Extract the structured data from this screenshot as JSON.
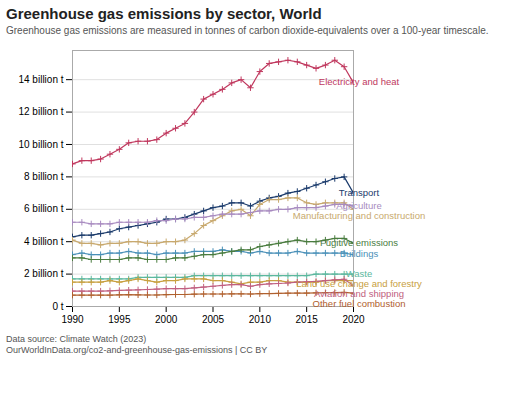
{
  "chart_data": {
    "type": "line",
    "title": "Greenhouse gas emissions by sector, World",
    "subtitle": "Greenhouse gas emissions are measured in tonnes of carbon dioxide-equivalents over a 100-year timescale.",
    "caption": "Data source: Climate Watch (2023)\nOurWorldInData.org/co2-and-greenhouse-gas-emissions | CC BY",
    "x": [
      1990,
      1991,
      1992,
      1993,
      1994,
      1995,
      1996,
      1997,
      1998,
      1999,
      2000,
      2001,
      2002,
      2003,
      2004,
      2005,
      2006,
      2007,
      2008,
      2009,
      2010,
      2011,
      2012,
      2013,
      2014,
      2015,
      2016,
      2017,
      2018,
      2019,
      2020
    ],
    "series": [
      {
        "name": "Electricity and heat",
        "color": "#c0385e",
        "values": [
          8.8,
          9.0,
          9.0,
          9.1,
          9.4,
          9.7,
          10.1,
          10.2,
          10.2,
          10.3,
          10.7,
          11.0,
          11.3,
          12.0,
          12.8,
          13.1,
          13.4,
          13.8,
          14.0,
          13.5,
          14.5,
          15.0,
          15.1,
          15.2,
          15.1,
          14.9,
          14.7,
          14.9,
          15.2,
          14.8,
          13.8
        ]
      },
      {
        "name": "Transport",
        "color": "#1a3a6b",
        "values": [
          4.3,
          4.4,
          4.4,
          4.5,
          4.6,
          4.8,
          4.9,
          5.0,
          5.1,
          5.2,
          5.4,
          5.4,
          5.5,
          5.7,
          5.9,
          6.1,
          6.2,
          6.4,
          6.4,
          6.2,
          6.5,
          6.7,
          6.8,
          7.0,
          7.1,
          7.3,
          7.5,
          7.7,
          7.9,
          8.0,
          7.0
        ]
      },
      {
        "name": "Manufacturing and construction",
        "color": "#c8a96e",
        "values": [
          4.1,
          3.9,
          3.9,
          3.8,
          3.9,
          3.9,
          4.0,
          4.0,
          3.9,
          3.9,
          4.0,
          4.0,
          4.1,
          4.5,
          5.0,
          5.3,
          5.6,
          5.9,
          6.0,
          5.6,
          6.3,
          6.6,
          6.6,
          6.7,
          6.7,
          6.4,
          6.3,
          6.4,
          6.4,
          6.4,
          6.0
        ]
      },
      {
        "name": "Agriculture",
        "color": "#a88bc0",
        "values": [
          5.2,
          5.2,
          5.1,
          5.1,
          5.1,
          5.2,
          5.2,
          5.2,
          5.2,
          5.3,
          5.3,
          5.4,
          5.4,
          5.5,
          5.5,
          5.6,
          5.7,
          5.7,
          5.7,
          5.8,
          5.9,
          5.9,
          6.0,
          6.0,
          6.1,
          6.1,
          6.1,
          6.2,
          6.3,
          6.3,
          6.2
        ]
      },
      {
        "name": "Buildings",
        "color": "#4a90b8",
        "values": [
          3.2,
          3.3,
          3.2,
          3.2,
          3.3,
          3.3,
          3.4,
          3.3,
          3.3,
          3.2,
          3.3,
          3.3,
          3.3,
          3.4,
          3.4,
          3.4,
          3.5,
          3.4,
          3.4,
          3.3,
          3.4,
          3.3,
          3.3,
          3.3,
          3.4,
          3.3,
          3.3,
          3.3,
          3.3,
          3.3,
          3.2
        ]
      },
      {
        "name": "Fugitive emissions",
        "color": "#4a7c3f",
        "values": [
          3.0,
          3.0,
          2.9,
          2.9,
          2.9,
          2.9,
          3.0,
          3.0,
          2.9,
          2.9,
          2.9,
          3.0,
          3.0,
          3.1,
          3.2,
          3.2,
          3.3,
          3.4,
          3.5,
          3.5,
          3.7,
          3.8,
          3.9,
          4.0,
          4.1,
          4.0,
          4.0,
          4.1,
          4.2,
          4.2,
          3.9
        ]
      },
      {
        "name": "Waste",
        "color": "#5bb89e",
        "values": [
          1.7,
          1.7,
          1.7,
          1.7,
          1.7,
          1.7,
          1.7,
          1.8,
          1.8,
          1.8,
          1.8,
          1.8,
          1.8,
          1.9,
          1.9,
          1.9,
          1.9,
          1.9,
          1.9,
          1.9,
          1.9,
          1.9,
          1.9,
          1.9,
          1.9,
          1.9,
          2.0,
          2.0,
          2.0,
          2.0,
          2.0
        ]
      },
      {
        "name": "Land use change and forestry",
        "color": "#c8a040",
        "values": [
          1.5,
          1.5,
          1.5,
          1.5,
          1.6,
          1.5,
          1.6,
          1.7,
          1.6,
          1.5,
          1.6,
          1.6,
          1.7,
          1.7,
          1.7,
          1.6,
          1.6,
          1.5,
          1.4,
          1.5,
          1.5,
          1.6,
          1.6,
          1.5,
          1.5,
          1.5,
          1.5,
          1.6,
          1.6,
          1.6,
          1.6
        ]
      },
      {
        "name": "Aviation and shipping",
        "color": "#c06080",
        "values": [
          0.95,
          0.95,
          0.95,
          0.95,
          0.97,
          0.99,
          1.01,
          1.03,
          1.05,
          1.07,
          1.1,
          1.1,
          1.1,
          1.15,
          1.2,
          1.25,
          1.3,
          1.35,
          1.35,
          1.25,
          1.35,
          1.4,
          1.42,
          1.45,
          1.5,
          1.52,
          1.55,
          1.6,
          1.65,
          1.68,
          1.3
        ]
      },
      {
        "name": "Other fuel combustion",
        "color": "#b0602e",
        "values": [
          0.7,
          0.7,
          0.7,
          0.7,
          0.7,
          0.72,
          0.73,
          0.72,
          0.71,
          0.71,
          0.73,
          0.74,
          0.74,
          0.76,
          0.77,
          0.77,
          0.77,
          0.78,
          0.78,
          0.77,
          0.79,
          0.8,
          0.81,
          0.82,
          0.83,
          0.83,
          0.84,
          0.85,
          0.86,
          0.87,
          0.82
        ]
      }
    ],
    "xlim": [
      1990,
      2020
    ],
    "xticks": [
      1990,
      1995,
      2000,
      2005,
      2010,
      2015,
      2020
    ],
    "ylim": [
      0,
      15.8
    ],
    "yticks": [
      {
        "value": 0,
        "label": "0 t"
      },
      {
        "value": 2,
        "label": "2 billion t"
      },
      {
        "value": 4,
        "label": "4 billion t"
      },
      {
        "value": 6,
        "label": "6 billion t"
      },
      {
        "value": 8,
        "label": "8 billion t"
      },
      {
        "value": 10,
        "label": "10 billion t"
      },
      {
        "value": 12,
        "label": "12 billion t"
      },
      {
        "value": 14,
        "label": "14 billion t"
      }
    ],
    "grid": true,
    "marker": "plus",
    "legend": "right"
  }
}
